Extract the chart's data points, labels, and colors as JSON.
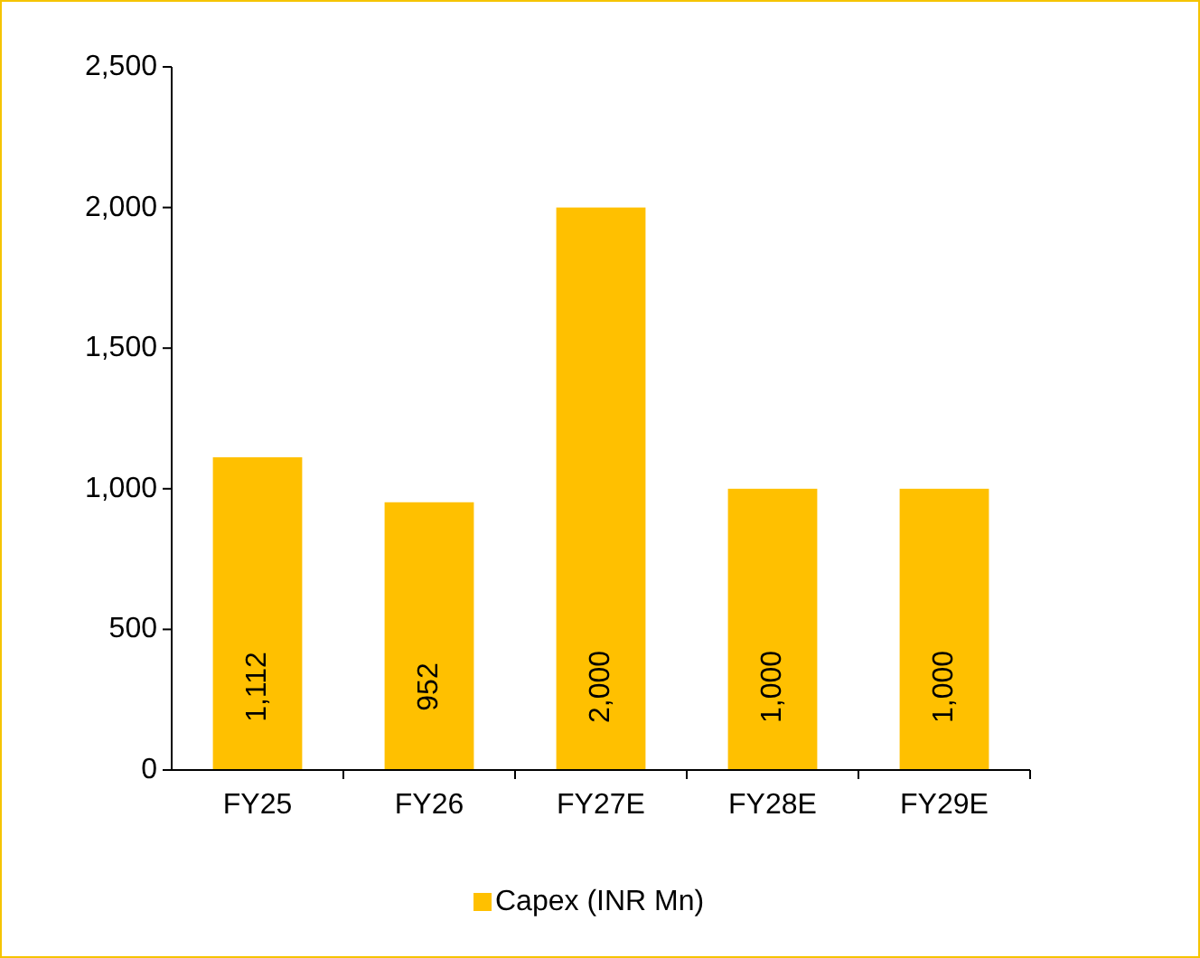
{
  "chart_data": {
    "type": "bar",
    "categories": [
      "FY25",
      "FY26",
      "FY27E",
      "FY28E",
      "FY29E"
    ],
    "series": [
      {
        "name": "Capex (INR Mn)",
        "color": "#ffc000",
        "values": [
          1112,
          952,
          2000,
          1000,
          1000
        ],
        "value_labels": [
          "1,112",
          "952",
          "2,000",
          "1,000",
          "1,000"
        ]
      }
    ],
    "ylim": [
      0,
      2500
    ],
    "yticks": [
      0,
      {
        "value": 500,
        "label": "500"
      },
      {
        "value": 1000,
        "label": "1,000"
      },
      {
        "value": 1500,
        "label": "1,500"
      },
      {
        "value": 2000,
        "label": "2,000"
      },
      {
        "value": 2500,
        "label": "2,500"
      }
    ],
    "grid": false,
    "legend": "bottom"
  }
}
